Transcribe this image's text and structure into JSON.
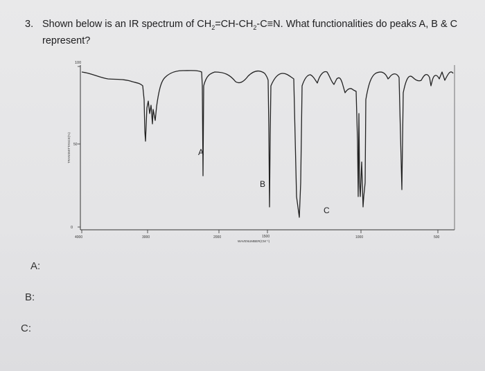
{
  "question": {
    "number": "3.",
    "text_before": "Shown below is an IR spectrum of CH",
    "sub1": "2",
    "text_mid1": "=CH-CH",
    "sub2": "2",
    "text_after": "-C≡N. What functionalities do peaks A, B & C represent?"
  },
  "spectrum": {
    "y_tick_top": "100",
    "y_tick_mid": "50",
    "y_tick_bottom": "0",
    "y_axis_label": "TRANSMITTANCE(%)",
    "x_axis_label": "WAVENUMBER(CM⁻¹)",
    "x_ticks": [
      "4000",
      "3000",
      "2000",
      "1500",
      "1000",
      "500"
    ],
    "peak_labels": [
      "A",
      "B",
      "C"
    ]
  },
  "answers": [
    "A:",
    "B:",
    "C:"
  ]
}
